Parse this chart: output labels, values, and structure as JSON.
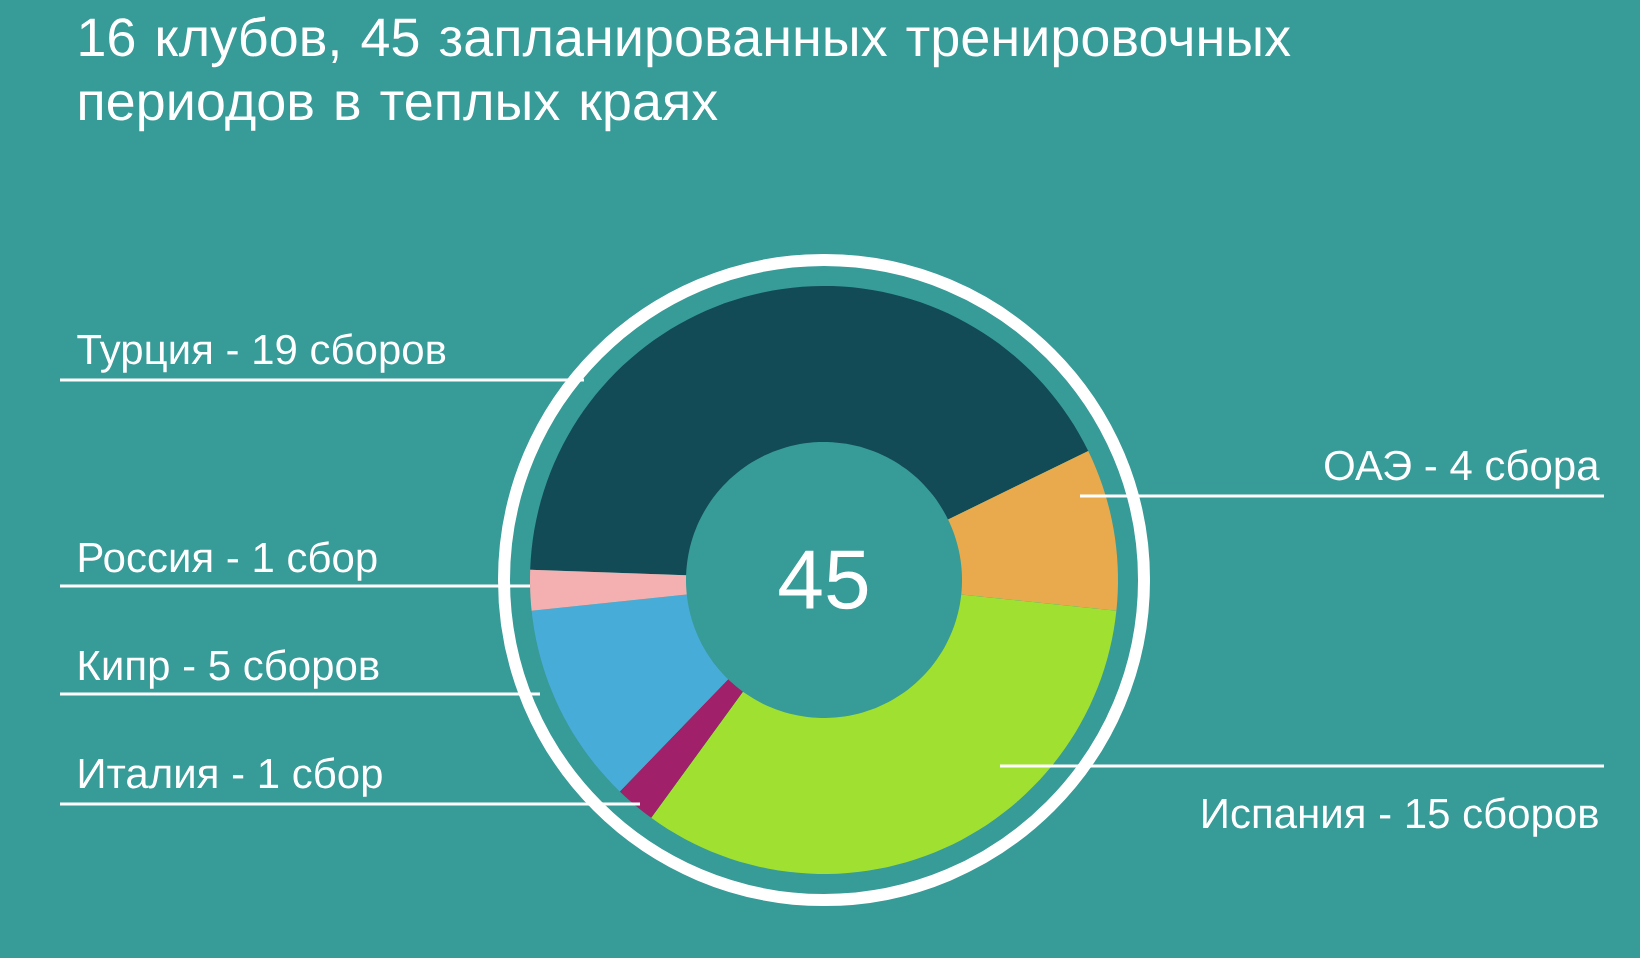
{
  "chart_data": {
    "type": "donut",
    "title": "16 клубов, 45 запланированных тренировочных периодов в теплых краях",
    "categories": [
      "Турция -",
      "ОАЭ -",
      "Испания -",
      "Италия -",
      "Кипр -",
      "Россия -"
    ],
    "values": [
      19,
      4,
      15,
      1,
      5,
      1
    ],
    "value_labels": [
      "19 сборов",
      "4 сбора",
      "15 сборов",
      "1 сбор",
      "5 сборов",
      "1 сбор"
    ],
    "colors": [
      "#124a56",
      "#e8aa4c",
      "#a0e030",
      "#a0206a",
      "#48acd8",
      "#f4b0b0"
    ],
    "annotations": [
      "45"
    ]
  }
}
